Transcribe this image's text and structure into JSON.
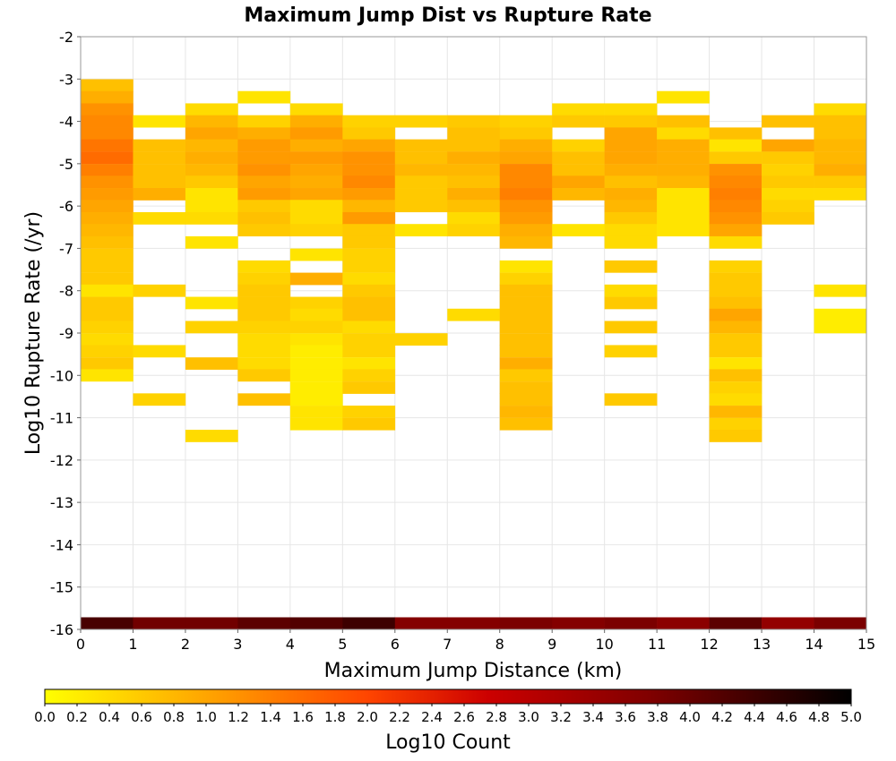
{
  "chart_data": {
    "type": "heatmap",
    "title": "Maximum Jump Dist vs Rupture Rate",
    "xlabel": "Maximum Jump Distance (km)",
    "ylabel": "Log10 Rupture Rate (/yr)",
    "xlim": [
      0,
      15
    ],
    "ylim": [
      -16,
      -2
    ],
    "x_ticks": [
      "0",
      "1",
      "2",
      "3",
      "4",
      "5",
      "6",
      "7",
      "8",
      "9",
      "10",
      "11",
      "12",
      "13",
      "14",
      "15"
    ],
    "y_ticks": [
      "-2",
      "-3",
      "-4",
      "-5",
      "-6",
      "-7",
      "-8",
      "-9",
      "-10",
      "-11",
      "-12",
      "-13",
      "-14",
      "-15",
      "-16"
    ],
    "x_bin_width": 1,
    "y_bin_height": 0.2857,
    "grid": true,
    "colorbar": {
      "label": "Log10 Count",
      "min": 0.0,
      "max": 5.0,
      "ticks": [
        "0.0",
        "0.2",
        "0.4",
        "0.6",
        "0.8",
        "1.0",
        "1.2",
        "1.4",
        "1.6",
        "1.8",
        "2.0",
        "2.2",
        "2.4",
        "2.6",
        "2.8",
        "3.0",
        "3.2",
        "3.4",
        "3.6",
        "3.8",
        "4.0",
        "4.2",
        "4.4",
        "4.6",
        "4.8",
        "5.0"
      ],
      "colors": [
        "#ffff00",
        "#ffa500",
        "#ff4500",
        "#cc0000",
        "#800000",
        "#000000"
      ]
    },
    "note_cells": "cells are [x_bin_start_km, y_bin_bottom_log10rate, log10_count]",
    "cells": [
      [
        0,
        -16.0,
        4.3
      ],
      [
        1,
        -16.0,
        3.9
      ],
      [
        2,
        -16.0,
        3.9
      ],
      [
        3,
        -16.0,
        4.1
      ],
      [
        4,
        -16.0,
        4.2
      ],
      [
        5,
        -16.0,
        4.4
      ],
      [
        6,
        -16.0,
        3.7
      ],
      [
        7,
        -16.0,
        3.7
      ],
      [
        8,
        -16.0,
        3.8
      ],
      [
        9,
        -16.0,
        3.7
      ],
      [
        10,
        -16.0,
        3.8
      ],
      [
        11,
        -16.0,
        3.6
      ],
      [
        12,
        -16.0,
        4.1
      ],
      [
        13,
        -16.0,
        3.5
      ],
      [
        14,
        -16.0,
        3.8
      ],
      [
        0,
        -3.29,
        0.7
      ],
      [
        0,
        -3.57,
        0.9
      ],
      [
        0,
        -3.86,
        1.2
      ],
      [
        0,
        -4.14,
        1.3
      ],
      [
        0,
        -4.43,
        1.3
      ],
      [
        0,
        -4.71,
        1.5
      ],
      [
        0,
        -5.0,
        1.6
      ],
      [
        0,
        -5.29,
        1.4
      ],
      [
        0,
        -5.57,
        1.2
      ],
      [
        0,
        -5.86,
        1.1
      ],
      [
        0,
        -6.14,
        1.0
      ],
      [
        0,
        -6.43,
        0.9
      ],
      [
        0,
        -6.71,
        0.8
      ],
      [
        0,
        -7.0,
        0.7
      ],
      [
        0,
        -7.29,
        0.6
      ],
      [
        0,
        -7.57,
        0.6
      ],
      [
        0,
        -7.86,
        0.6
      ],
      [
        0,
        -8.14,
        0.3
      ],
      [
        0,
        -8.43,
        0.6
      ],
      [
        0,
        -8.71,
        0.6
      ],
      [
        0,
        -9.0,
        0.5
      ],
      [
        0,
        -9.29,
        0.4
      ],
      [
        0,
        -9.57,
        0.5
      ],
      [
        0,
        -9.86,
        0.6
      ],
      [
        0,
        -10.14,
        0.3
      ],
      [
        1,
        -4.14,
        0.3
      ],
      [
        1,
        -4.71,
        0.7
      ],
      [
        1,
        -5.0,
        0.7
      ],
      [
        1,
        -5.29,
        0.7
      ],
      [
        1,
        -5.57,
        0.7
      ],
      [
        1,
        -5.86,
        0.9
      ],
      [
        1,
        -6.43,
        0.4
      ],
      [
        1,
        -8.14,
        0.5
      ],
      [
        1,
        -9.57,
        0.4
      ],
      [
        1,
        -10.71,
        0.5
      ],
      [
        2,
        -3.86,
        0.4
      ],
      [
        2,
        -4.14,
        0.8
      ],
      [
        2,
        -4.43,
        1.0
      ],
      [
        2,
        -4.71,
        0.8
      ],
      [
        2,
        -5.0,
        0.9
      ],
      [
        2,
        -5.29,
        0.8
      ],
      [
        2,
        -5.57,
        0.6
      ],
      [
        2,
        -5.86,
        0.3
      ],
      [
        2,
        -6.14,
        0.3
      ],
      [
        2,
        -6.43,
        0.4
      ],
      [
        2,
        -7.0,
        0.3
      ],
      [
        2,
        -8.43,
        0.3
      ],
      [
        2,
        -9.0,
        0.5
      ],
      [
        2,
        -9.86,
        0.7
      ],
      [
        2,
        -11.57,
        0.4
      ],
      [
        3,
        -3.57,
        0.3
      ],
      [
        3,
        -4.14,
        0.5
      ],
      [
        3,
        -4.43,
        0.9
      ],
      [
        3,
        -4.71,
        1.1
      ],
      [
        3,
        -5.0,
        1.1
      ],
      [
        3,
        -5.29,
        1.2
      ],
      [
        3,
        -5.57,
        1.0
      ],
      [
        3,
        -5.86,
        1.1
      ],
      [
        3,
        -6.14,
        0.6
      ],
      [
        3,
        -6.43,
        0.7
      ],
      [
        3,
        -6.71,
        0.6
      ],
      [
        3,
        -7.57,
        0.4
      ],
      [
        3,
        -7.86,
        0.5
      ],
      [
        3,
        -8.14,
        0.6
      ],
      [
        3,
        -8.43,
        0.6
      ],
      [
        3,
        -8.71,
        0.6
      ],
      [
        3,
        -9.0,
        0.5
      ],
      [
        3,
        -9.29,
        0.4
      ],
      [
        3,
        -9.57,
        0.4
      ],
      [
        3,
        -9.86,
        0.4
      ],
      [
        3,
        -10.14,
        0.6
      ],
      [
        3,
        -10.71,
        0.7
      ],
      [
        4,
        -3.86,
        0.4
      ],
      [
        4,
        -4.14,
        0.9
      ],
      [
        4,
        -4.43,
        1.1
      ],
      [
        4,
        -4.71,
        0.9
      ],
      [
        4,
        -5.0,
        1.1
      ],
      [
        4,
        -5.29,
        1.0
      ],
      [
        4,
        -5.57,
        0.9
      ],
      [
        4,
        -5.86,
        1.0
      ],
      [
        4,
        -6.14,
        0.4
      ],
      [
        4,
        -6.43,
        0.4
      ],
      [
        4,
        -6.71,
        0.5
      ],
      [
        4,
        -7.29,
        0.3
      ],
      [
        4,
        -7.86,
        0.9
      ],
      [
        4,
        -8.43,
        0.5
      ],
      [
        4,
        -8.71,
        0.4
      ],
      [
        4,
        -9.0,
        0.5
      ],
      [
        4,
        -9.29,
        0.3
      ],
      [
        4,
        -9.57,
        0.2
      ],
      [
        4,
        -9.86,
        0.2
      ],
      [
        4,
        -10.14,
        0.2
      ],
      [
        4,
        -10.43,
        0.2
      ],
      [
        4,
        -10.71,
        0.2
      ],
      [
        4,
        -11.0,
        0.3
      ],
      [
        4,
        -11.29,
        0.3
      ],
      [
        5,
        -4.14,
        0.5
      ],
      [
        5,
        -4.43,
        0.6
      ],
      [
        5,
        -4.71,
        1.0
      ],
      [
        5,
        -5.0,
        1.2
      ],
      [
        5,
        -5.29,
        1.2
      ],
      [
        5,
        -5.57,
        1.3
      ],
      [
        5,
        -5.86,
        1.1
      ],
      [
        5,
        -6.14,
        0.8
      ],
      [
        5,
        -6.43,
        1.1
      ],
      [
        5,
        -6.71,
        0.6
      ],
      [
        5,
        -7.0,
        0.6
      ],
      [
        5,
        -7.29,
        0.5
      ],
      [
        5,
        -7.57,
        0.5
      ],
      [
        5,
        -7.86,
        0.4
      ],
      [
        5,
        -8.14,
        0.6
      ],
      [
        5,
        -8.43,
        0.7
      ],
      [
        5,
        -8.71,
        0.7
      ],
      [
        5,
        -9.0,
        0.4
      ],
      [
        5,
        -9.29,
        0.5
      ],
      [
        5,
        -9.57,
        0.5
      ],
      [
        5,
        -9.86,
        0.3
      ],
      [
        5,
        -10.14,
        0.5
      ],
      [
        5,
        -10.43,
        0.6
      ],
      [
        5,
        -11.0,
        0.5
      ],
      [
        5,
        -11.29,
        0.6
      ],
      [
        6,
        -4.14,
        0.5
      ],
      [
        6,
        -4.71,
        0.7
      ],
      [
        6,
        -5.0,
        0.7
      ],
      [
        6,
        -5.29,
        0.8
      ],
      [
        6,
        -5.57,
        0.6
      ],
      [
        6,
        -5.86,
        0.6
      ],
      [
        6,
        -6.14,
        0.6
      ],
      [
        6,
        -6.71,
        0.3
      ],
      [
        6,
        -9.29,
        0.5
      ],
      [
        7,
        -4.14,
        0.6
      ],
      [
        7,
        -4.43,
        0.7
      ],
      [
        7,
        -4.71,
        0.7
      ],
      [
        7,
        -5.0,
        0.9
      ],
      [
        7,
        -5.29,
        0.8
      ],
      [
        7,
        -5.57,
        0.7
      ],
      [
        7,
        -5.86,
        0.9
      ],
      [
        7,
        -6.14,
        0.7
      ],
      [
        7,
        -6.43,
        0.4
      ],
      [
        7,
        -6.71,
        0.5
      ],
      [
        7,
        -8.71,
        0.4
      ],
      [
        8,
        -4.14,
        0.5
      ],
      [
        8,
        -4.43,
        0.6
      ],
      [
        8,
        -4.71,
        0.9
      ],
      [
        8,
        -5.0,
        1.0
      ],
      [
        8,
        -5.29,
        1.3
      ],
      [
        8,
        -5.57,
        1.3
      ],
      [
        8,
        -5.86,
        1.4
      ],
      [
        8,
        -6.14,
        1.2
      ],
      [
        8,
        -6.43,
        1.1
      ],
      [
        8,
        -6.71,
        0.9
      ],
      [
        8,
        -7.0,
        0.8
      ],
      [
        8,
        -7.57,
        0.3
      ],
      [
        8,
        -7.86,
        0.5
      ],
      [
        8,
        -8.14,
        0.7
      ],
      [
        8,
        -8.43,
        0.7
      ],
      [
        8,
        -8.71,
        0.7
      ],
      [
        8,
        -9.0,
        0.7
      ],
      [
        8,
        -9.29,
        0.7
      ],
      [
        8,
        -9.57,
        0.7
      ],
      [
        8,
        -9.86,
        0.9
      ],
      [
        8,
        -10.14,
        0.6
      ],
      [
        8,
        -10.43,
        0.7
      ],
      [
        8,
        -10.71,
        0.7
      ],
      [
        8,
        -11.0,
        0.8
      ],
      [
        8,
        -11.29,
        0.7
      ],
      [
        9,
        -3.86,
        0.4
      ],
      [
        9,
        -4.14,
        0.6
      ],
      [
        9,
        -4.71,
        0.5
      ],
      [
        9,
        -5.0,
        0.7
      ],
      [
        9,
        -5.29,
        0.7
      ],
      [
        9,
        -5.57,
        1.0
      ],
      [
        9,
        -5.86,
        0.8
      ],
      [
        9,
        -6.71,
        0.3
      ],
      [
        10,
        -3.86,
        0.4
      ],
      [
        10,
        -4.14,
        0.6
      ],
      [
        10,
        -4.43,
        1.0
      ],
      [
        10,
        -4.71,
        1.0
      ],
      [
        10,
        -5.0,
        1.0
      ],
      [
        10,
        -5.29,
        0.9
      ],
      [
        10,
        -5.57,
        0.7
      ],
      [
        10,
        -5.86,
        0.9
      ],
      [
        10,
        -6.14,
        0.8
      ],
      [
        10,
        -6.43,
        0.6
      ],
      [
        10,
        -6.71,
        0.4
      ],
      [
        10,
        -7.0,
        0.4
      ],
      [
        10,
        -7.57,
        0.6
      ],
      [
        10,
        -8.14,
        0.4
      ],
      [
        10,
        -8.43,
        0.6
      ],
      [
        10,
        -9.0,
        0.6
      ],
      [
        10,
        -9.57,
        0.5
      ],
      [
        10,
        -10.71,
        0.6
      ],
      [
        11,
        -3.57,
        0.3
      ],
      [
        11,
        -4.14,
        0.7
      ],
      [
        11,
        -4.43,
        0.4
      ],
      [
        11,
        -4.71,
        0.9
      ],
      [
        11,
        -5.0,
        0.9
      ],
      [
        11,
        -5.29,
        0.9
      ],
      [
        11,
        -5.57,
        0.8
      ],
      [
        11,
        -5.86,
        0.3
      ],
      [
        11,
        -6.14,
        0.3
      ],
      [
        11,
        -6.43,
        0.3
      ],
      [
        11,
        -6.71,
        0.3
      ],
      [
        12,
        -4.43,
        0.7
      ],
      [
        12,
        -4.71,
        0.3
      ],
      [
        12,
        -5.0,
        0.6
      ],
      [
        12,
        -5.29,
        1.2
      ],
      [
        12,
        -5.57,
        1.3
      ],
      [
        12,
        -5.86,
        1.4
      ],
      [
        12,
        -6.14,
        1.3
      ],
      [
        12,
        -6.43,
        1.2
      ],
      [
        12,
        -6.71,
        1.0
      ],
      [
        12,
        -7.0,
        0.4
      ],
      [
        12,
        -7.57,
        0.5
      ],
      [
        12,
        -7.86,
        0.6
      ],
      [
        12,
        -8.14,
        0.6
      ],
      [
        12,
        -8.43,
        0.7
      ],
      [
        12,
        -8.71,
        1.0
      ],
      [
        12,
        -9.0,
        0.8
      ],
      [
        12,
        -9.29,
        0.6
      ],
      [
        12,
        -9.57,
        0.6
      ],
      [
        12,
        -9.86,
        0.3
      ],
      [
        12,
        -10.14,
        0.7
      ],
      [
        12,
        -10.43,
        0.5
      ],
      [
        12,
        -10.71,
        0.4
      ],
      [
        12,
        -11.0,
        0.8
      ],
      [
        12,
        -11.29,
        0.5
      ],
      [
        12,
        -11.57,
        0.6
      ],
      [
        13,
        -4.14,
        0.7
      ],
      [
        13,
        -4.71,
        1.0
      ],
      [
        13,
        -5.0,
        0.6
      ],
      [
        13,
        -5.29,
        0.5
      ],
      [
        13,
        -5.57,
        0.6
      ],
      [
        13,
        -5.86,
        0.4
      ],
      [
        13,
        -6.14,
        0.5
      ],
      [
        13,
        -6.43,
        0.6
      ],
      [
        14,
        -3.86,
        0.4
      ],
      [
        14,
        -4.14,
        0.7
      ],
      [
        14,
        -4.43,
        0.7
      ],
      [
        14,
        -4.71,
        0.8
      ],
      [
        14,
        -5.0,
        0.8
      ],
      [
        14,
        -5.29,
        0.9
      ],
      [
        14,
        -5.57,
        0.6
      ],
      [
        14,
        -5.86,
        0.4
      ],
      [
        14,
        -8.14,
        0.3
      ],
      [
        14,
        -8.71,
        0.2
      ],
      [
        14,
        -9.0,
        0.2
      ]
    ]
  }
}
